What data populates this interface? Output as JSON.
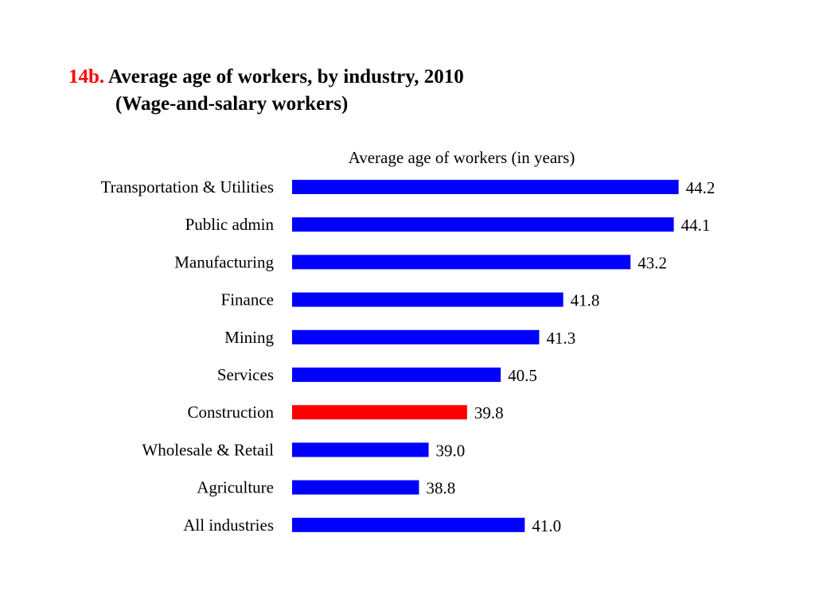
{
  "title": {
    "number": "14b.",
    "main": "Average age of workers, by industry, 2010",
    "subtitle": "(Wage-and-salary workers)"
  },
  "chart_data": {
    "type": "bar",
    "orientation": "horizontal",
    "xlabel": "Average age of workers (in years)",
    "xlabel_position": "top",
    "categories": [
      "Transportation & Utilities",
      "Public admin",
      "Manufacturing",
      "Finance",
      "Mining",
      "Services",
      "Construction",
      "Wholesale & Retail",
      "Agriculture",
      "All industries"
    ],
    "values": [
      44.2,
      44.1,
      43.2,
      41.8,
      41.3,
      40.5,
      39.8,
      39.0,
      38.8,
      41.0
    ],
    "value_labels": [
      "44.2",
      "44.1",
      "43.2",
      "41.8",
      "41.3",
      "40.5",
      "39.8",
      "39.0",
      "38.8",
      "41.0"
    ],
    "highlight_index": 6,
    "bar_color": "#0000ff",
    "highlight_color": "#ff0000",
    "grid": false,
    "legend": "none"
  }
}
